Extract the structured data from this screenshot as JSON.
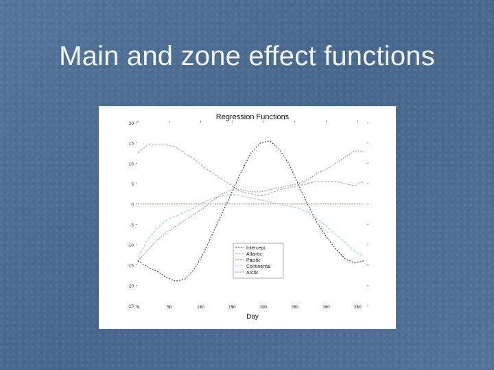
{
  "slide": {
    "title": "Main and zone effect functions"
  },
  "colors": {
    "intercept": "#222222",
    "atlantic": "#9a9a9a",
    "pacific": "#e05a3a",
    "continental": "#8ecfd8",
    "arctic": "#777777"
  },
  "chart_data": {
    "type": "line",
    "title": "Regression Functions",
    "xlabel": "Day",
    "ylabel": "",
    "xlim": [
      0,
      365
    ],
    "ylim": [
      -25,
      20
    ],
    "x_ticks": [
      "0",
      "50",
      "100",
      "150",
      "200",
      "250",
      "300",
      "350"
    ],
    "y_ticks": [
      "20",
      "15",
      "10",
      "5",
      "0",
      "-5",
      "-10",
      "-15",
      "-20",
      "-25"
    ],
    "x": [
      0,
      15,
      30,
      45,
      60,
      75,
      90,
      105,
      120,
      135,
      150,
      165,
      180,
      195,
      210,
      225,
      240,
      255,
      270,
      285,
      300,
      315,
      330,
      345,
      360
    ],
    "series": [
      {
        "name": "Intercept",
        "values": [
          -14,
          -15.5,
          -16.5,
          -18,
          -19,
          -18.5,
          -16,
          -12,
          -7,
          -2,
          3,
          8,
          12.5,
          15,
          15.5,
          13.5,
          10,
          5,
          0,
          -4.5,
          -8,
          -11,
          -13.5,
          -14.5,
          -14
        ]
      },
      {
        "name": "Atlantic",
        "values": [
          12.5,
          14.5,
          14.5,
          14.5,
          14,
          12.5,
          11,
          9,
          7.5,
          6,
          4.5,
          3,
          2.5,
          2,
          2.5,
          3.5,
          4,
          4.5,
          5,
          5.5,
          5.5,
          5.5,
          5,
          4.5,
          5.5
        ]
      },
      {
        "name": "Pacific",
        "values": [
          0,
          0,
          0,
          0,
          0,
          0,
          0,
          0,
          0,
          0,
          0,
          0,
          0,
          0,
          0,
          0,
          0,
          0,
          0,
          0,
          0,
          0,
          0,
          0,
          0
        ]
      },
      {
        "name": "Continental",
        "values": [
          -13,
          -9,
          -6,
          -4,
          -3,
          -2,
          -1,
          0.5,
          1.5,
          2,
          2.5,
          2,
          1.5,
          1,
          0.5,
          0,
          -0.5,
          -1,
          -2,
          -3.5,
          -5.5,
          -7.5,
          -9.5,
          -11.5,
          -13
        ]
      },
      {
        "name": "Arctic",
        "values": [
          -14,
          -11.5,
          -9,
          -7,
          -5.5,
          -4,
          -2.5,
          -1,
          1,
          2.5,
          3.5,
          3.5,
          3,
          3,
          3.5,
          4,
          4.5,
          5,
          6,
          7.5,
          8.5,
          10,
          11.5,
          13,
          13
        ]
      }
    ],
    "legend": {
      "position": "bottom-center",
      "entries": [
        "Intercept",
        "Atlantic",
        "Pacific",
        "Continental",
        "Arctic"
      ]
    },
    "grid": false
  }
}
